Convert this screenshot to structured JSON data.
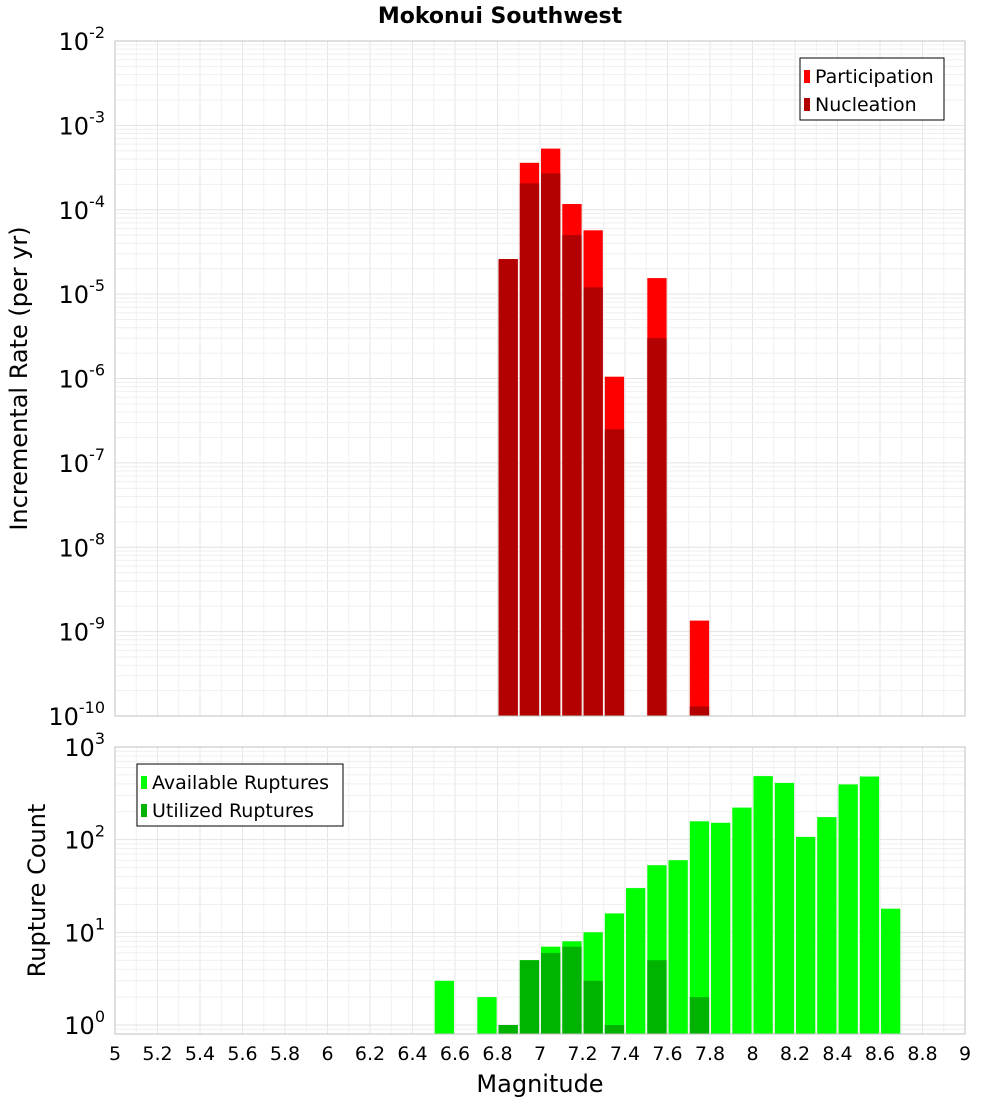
{
  "chart_data": [
    {
      "type": "bar",
      "title": "Mokonui Southwest",
      "ylabel": "Incremental Rate (per yr)",
      "xlabel": "",
      "y_scale": "log",
      "ylim": [
        1e-10,
        0.01
      ],
      "y_tick_labels": [
        {
          "base": "10",
          "exp": "-2"
        },
        {
          "base": "10",
          "exp": "-3"
        },
        {
          "base": "10",
          "exp": "-4"
        },
        {
          "base": "10",
          "exp": "-5"
        },
        {
          "base": "10",
          "exp": "-6"
        },
        {
          "base": "10",
          "exp": "-7"
        },
        {
          "base": "10",
          "exp": "-8"
        },
        {
          "base": "10",
          "exp": "-9"
        },
        {
          "base": "10",
          "exp": "-10"
        }
      ],
      "xlim": [
        5,
        9
      ],
      "grid": true,
      "legend_position": "top-right",
      "series": [
        {
          "name": "Participation",
          "color": "#ff0000",
          "points": [
            {
              "x": 6.85,
              "y": 2.6e-05
            },
            {
              "x": 6.95,
              "y": 0.00036
            },
            {
              "x": 7.05,
              "y": 0.00053
            },
            {
              "x": 7.15,
              "y": 0.000117
            },
            {
              "x": 7.25,
              "y": 5.7e-05
            },
            {
              "x": 7.35,
              "y": 1.05e-06
            },
            {
              "x": 7.55,
              "y": 1.55e-05
            },
            {
              "x": 7.75,
              "y": 1.35e-09
            }
          ]
        },
        {
          "name": "Nucleation",
          "color": "#b30000",
          "points": [
            {
              "x": 6.85,
              "y": 2.6e-05
            },
            {
              "x": 6.95,
              "y": 0.000205
            },
            {
              "x": 7.05,
              "y": 0.00027
            },
            {
              "x": 7.15,
              "y": 5e-05
            },
            {
              "x": 7.25,
              "y": 1.2e-05
            },
            {
              "x": 7.35,
              "y": 2.5e-07
            },
            {
              "x": 7.55,
              "y": 3e-06
            },
            {
              "x": 7.75,
              "y": 1.3e-10
            }
          ]
        }
      ]
    },
    {
      "type": "bar",
      "title": "",
      "ylabel": "Rupture Count",
      "xlabel": "Magnitude",
      "y_scale": "log",
      "ylim": [
        0.8,
        1000
      ],
      "y_tick_labels": [
        {
          "base": "10",
          "exp": "3"
        },
        {
          "base": "10",
          "exp": "2"
        },
        {
          "base": "10",
          "exp": "1"
        },
        {
          "base": "10",
          "exp": "0"
        }
      ],
      "xlim": [
        5,
        9
      ],
      "x_tick_labels": [
        "5",
        "5.2",
        "5.4",
        "5.6",
        "5.8",
        "6",
        "6.2",
        "6.4",
        "6.6",
        "6.8",
        "7",
        "7.2",
        "7.4",
        "7.6",
        "7.8",
        "8",
        "8.2",
        "8.4",
        "8.6",
        "8.8",
        "9"
      ],
      "grid": true,
      "legend_position": "top-left",
      "series": [
        {
          "name": "Available Ruptures",
          "color": "#00ff00",
          "points": [
            {
              "x": 6.55,
              "y": 3
            },
            {
              "x": 6.75,
              "y": 2
            },
            {
              "x": 6.85,
              "y": 1
            },
            {
              "x": 6.95,
              "y": 5
            },
            {
              "x": 7.05,
              "y": 7
            },
            {
              "x": 7.15,
              "y": 8
            },
            {
              "x": 7.25,
              "y": 10
            },
            {
              "x": 7.35,
              "y": 16
            },
            {
              "x": 7.45,
              "y": 30
            },
            {
              "x": 7.55,
              "y": 53
            },
            {
              "x": 7.65,
              "y": 60
            },
            {
              "x": 7.75,
              "y": 158
            },
            {
              "x": 7.85,
              "y": 152
            },
            {
              "x": 7.95,
              "y": 222
            },
            {
              "x": 8.05,
              "y": 485
            },
            {
              "x": 8.15,
              "y": 410
            },
            {
              "x": 8.25,
              "y": 107
            },
            {
              "x": 8.35,
              "y": 175
            },
            {
              "x": 8.45,
              "y": 395
            },
            {
              "x": 8.55,
              "y": 480
            },
            {
              "x": 8.65,
              "y": 18
            }
          ]
        },
        {
          "name": "Utilized Ruptures",
          "color": "#00b300",
          "points": [
            {
              "x": 6.85,
              "y": 1
            },
            {
              "x": 6.95,
              "y": 5
            },
            {
              "x": 7.05,
              "y": 6
            },
            {
              "x": 7.15,
              "y": 7
            },
            {
              "x": 7.25,
              "y": 3
            },
            {
              "x": 7.35,
              "y": 1
            },
            {
              "x": 7.55,
              "y": 5
            },
            {
              "x": 7.75,
              "y": 2
            }
          ]
        }
      ]
    }
  ]
}
